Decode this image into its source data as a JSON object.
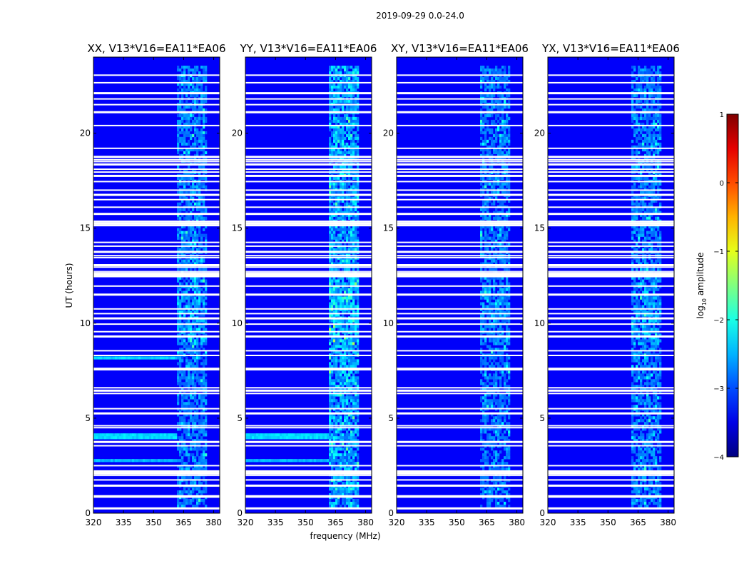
{
  "chart_data": {
    "type": "heatmap",
    "title": "2019-09-29 0.0-24.0",
    "ylabel": "UT (hours)",
    "xlabel": "frequency (MHz)",
    "xlim": [
      320,
      383
    ],
    "ylim": [
      0,
      24
    ],
    "x_ticks": [
      "320",
      "335",
      "350",
      "365",
      "380"
    ],
    "y_ticks": [
      "0",
      "5",
      "10",
      "15",
      "20"
    ],
    "colormap": "jet",
    "colorbar": {
      "label_main": "log",
      "label_sub": "10",
      "label_rest": " amplitude",
      "range": [
        -4,
        1
      ],
      "ticks": [
        "1",
        "0",
        "−1",
        "−2",
        "−3",
        "−4"
      ]
    },
    "rfi_band_mhz": [
      362,
      377
    ],
    "panels": [
      {
        "title": "XX, V13*V16=EA11*EA06",
        "rfi_strength": 0.55,
        "low_band_hours": [
          [
            3.9,
            4.2,
            0.45
          ],
          [
            2.7,
            2.8,
            0.4
          ],
          [
            8.1,
            8.2,
            0.45
          ],
          [
            6.7,
            6.8,
            0.35
          ]
        ]
      },
      {
        "title": "YY, V13*V16=EA11*EA06",
        "rfi_strength": 0.8,
        "low_band_hours": [
          [
            3.9,
            4.2,
            0.45
          ],
          [
            2.7,
            2.8,
            0.4
          ],
          [
            6.7,
            6.8,
            0.3
          ]
        ]
      },
      {
        "title": "XY, V13*V16=EA11*EA06",
        "rfi_strength": 0.5,
        "low_band_hours": []
      },
      {
        "title": "YX, V13*V16=EA11*EA06",
        "rfi_strength": 0.55,
        "low_band_hours": []
      }
    ],
    "flagged_hours": [
      0.25,
      0.85,
      0.9,
      1.45,
      1.75,
      2.1,
      2.2,
      2.5,
      3.55,
      3.75,
      4.5,
      4.6,
      5.25,
      5.5,
      6.3,
      6.45,
      6.6,
      7.55,
      7.6,
      8.3,
      8.55,
      9.3,
      9.55,
      9.95,
      10.25,
      10.5,
      10.75,
      11.5,
      11.95,
      12.45,
      12.55,
      12.6,
      12.95,
      13.05,
      13.45,
      13.55,
      13.75,
      14.05,
      14.25,
      15.15,
      15.25,
      15.35,
      15.75,
      16.1,
      16.5,
      16.75,
      17.0,
      17.45,
      17.75,
      17.95,
      18.1,
      18.35,
      18.5,
      18.6,
      18.75,
      19.2,
      20.4,
      21.1,
      21.5,
      21.8,
      22.1,
      22.65,
      23.05
    ]
  }
}
